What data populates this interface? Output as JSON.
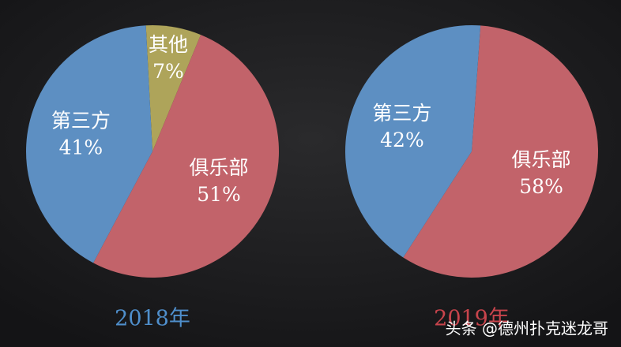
{
  "chart_data": [
    {
      "type": "pie",
      "title": "2018年",
      "title_color": "#4f8fcc",
      "categories": [
        "其他",
        "俱乐部",
        "第三方"
      ],
      "values": [
        7,
        51,
        41
      ],
      "value_labels": [
        "7%",
        "51%",
        "41%"
      ],
      "colors": [
        "#aea45a",
        "#c2636a",
        "#5d8fc2"
      ]
    },
    {
      "type": "pie",
      "title": "2019年",
      "title_color": "#c8444c",
      "categories": [
        "俱乐部",
        "第三方"
      ],
      "values": [
        58,
        42
      ],
      "value_labels": [
        "58%",
        "42%"
      ],
      "colors": [
        "#c2636a",
        "#5d8fc2"
      ]
    }
  ],
  "watermark": "头条 @德州扑克迷龙哥"
}
